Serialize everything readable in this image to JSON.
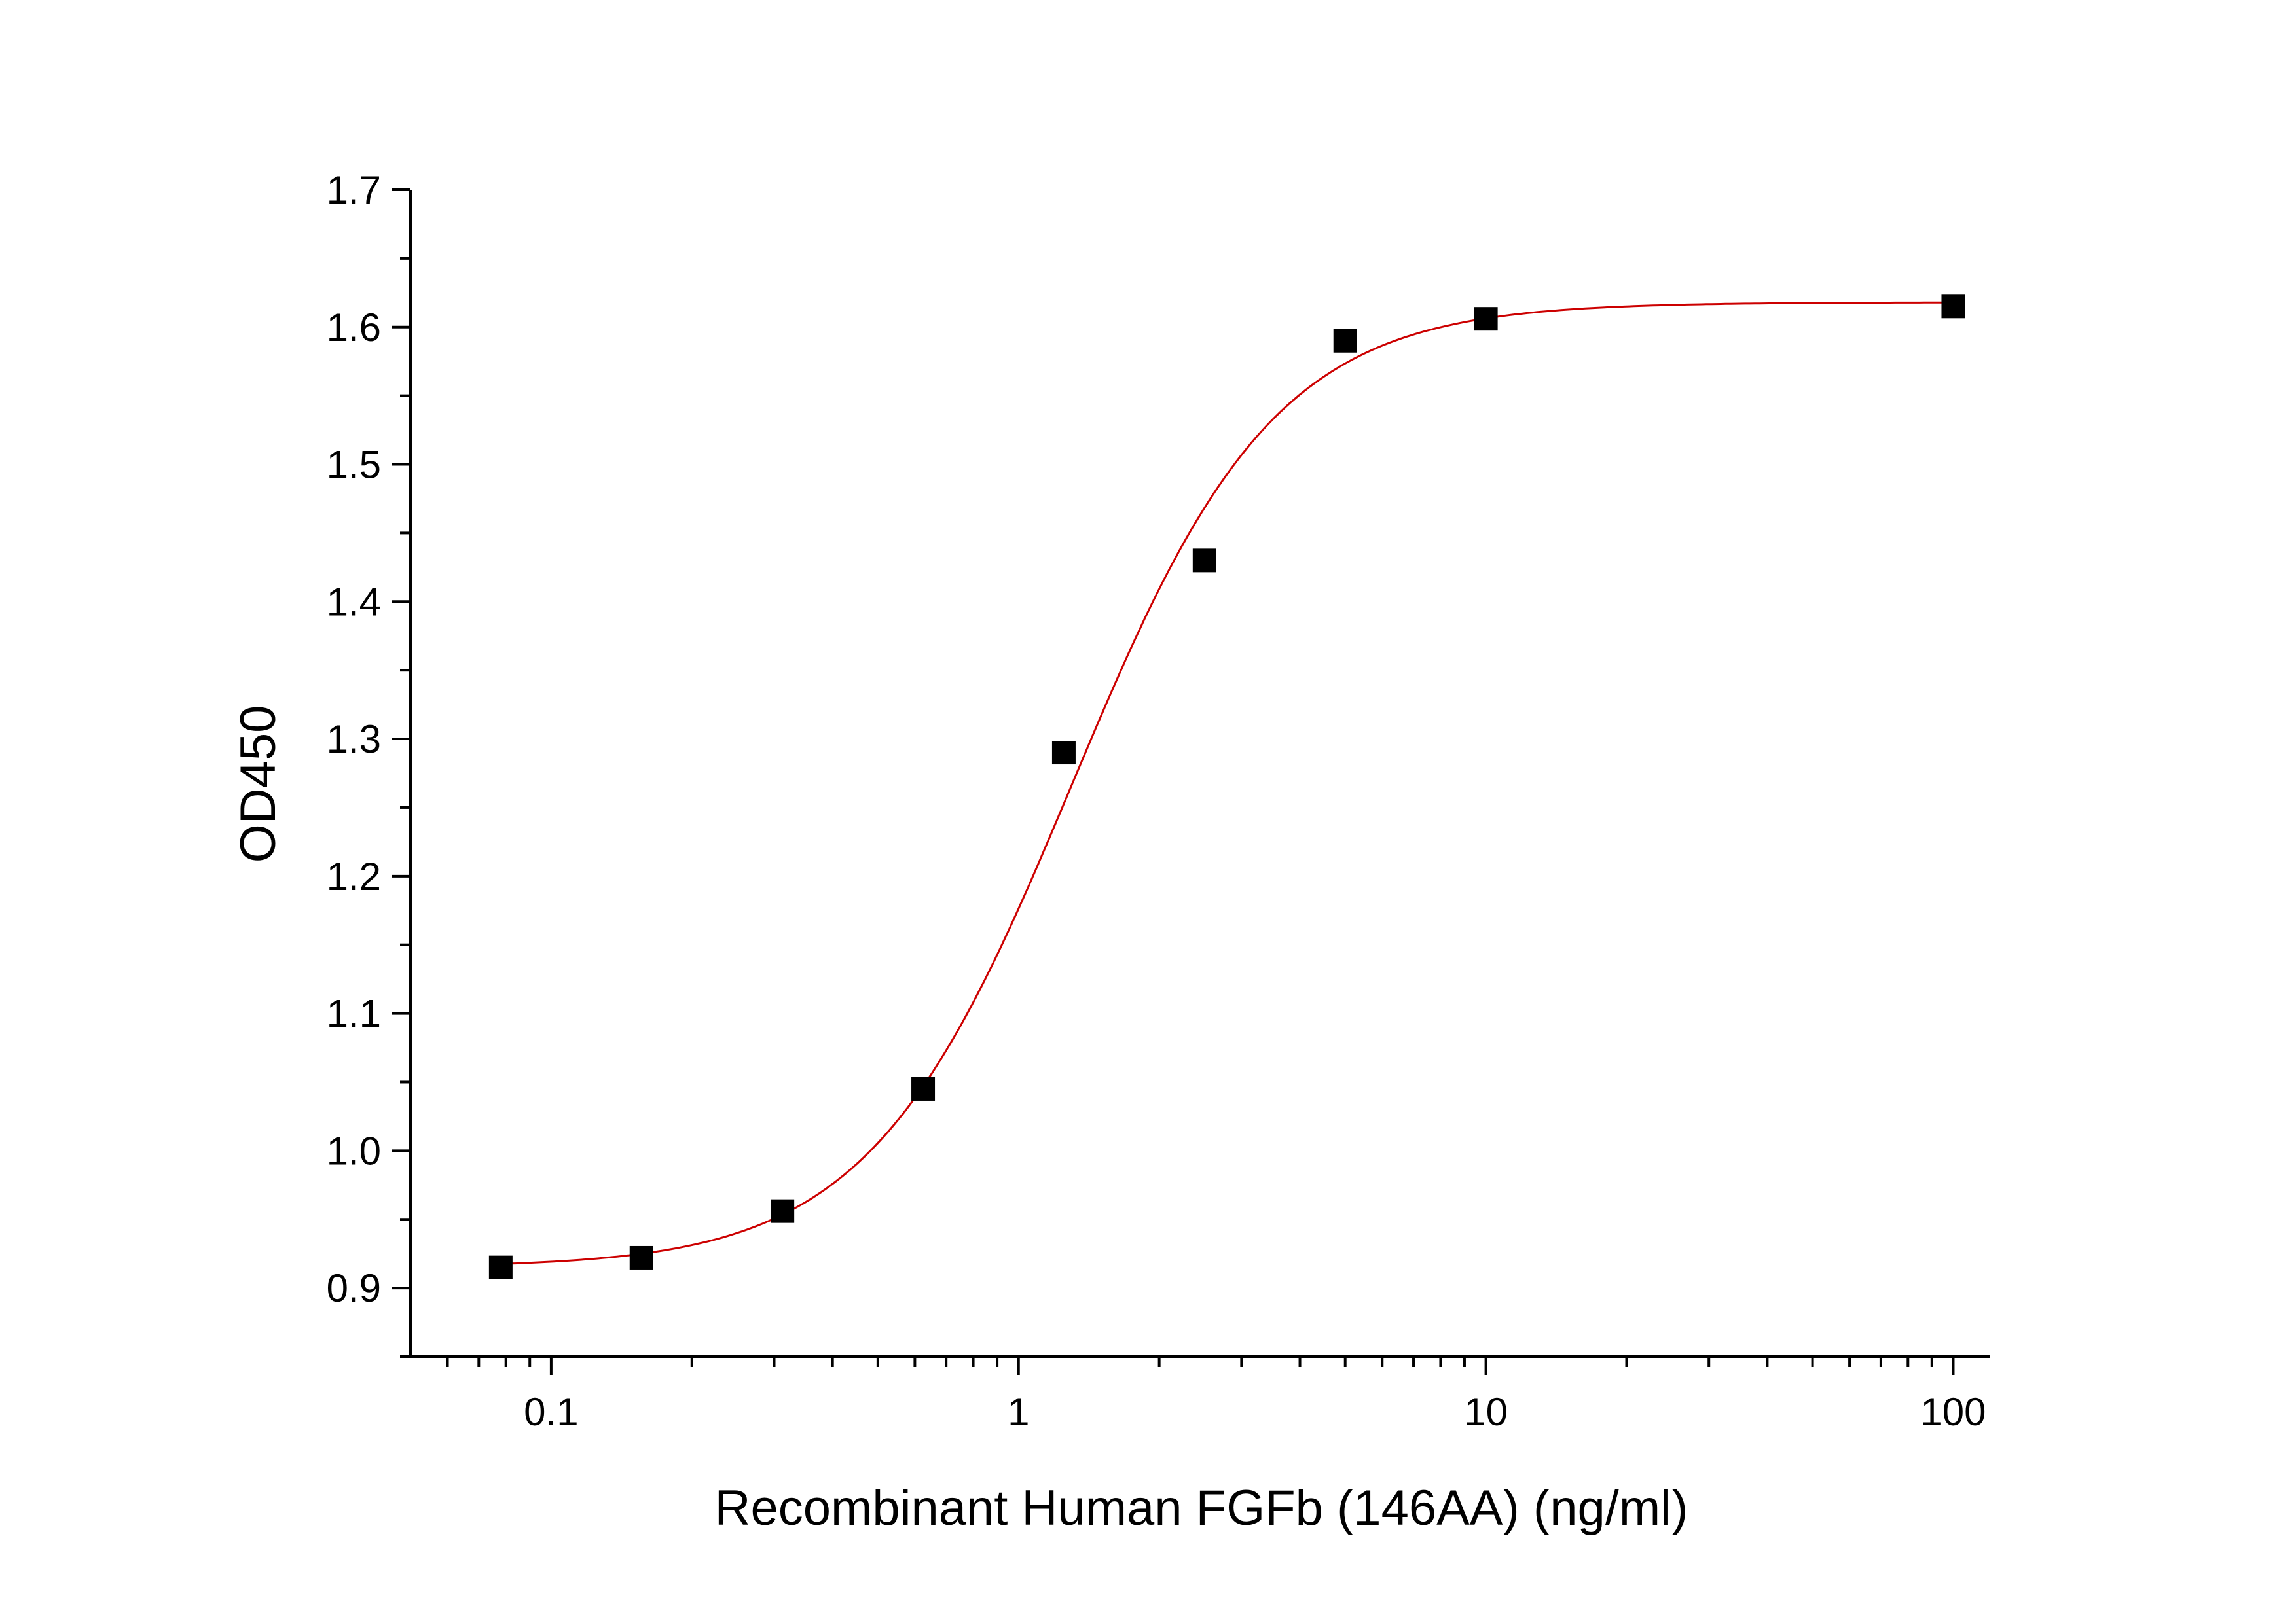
{
  "chart_data": {
    "type": "scatter",
    "xlabel": "Recombinant Human FGFb (146AA) (ng/ml)",
    "ylabel": "OD450",
    "xscale": "log",
    "xlim": [
      0.05,
      120
    ],
    "ylim": [
      0.85,
      1.7
    ],
    "xticks": [
      {
        "value": 0.1,
        "label": "0.1"
      },
      {
        "value": 1,
        "label": "1"
      },
      {
        "value": 10,
        "label": "10"
      },
      {
        "value": 100,
        "label": "100"
      }
    ],
    "yticks": [
      {
        "value": 0.9,
        "label": "0.9"
      },
      {
        "value": 1.0,
        "label": "1.0"
      },
      {
        "value": 1.1,
        "label": "1.1"
      },
      {
        "value": 1.2,
        "label": "1.2"
      },
      {
        "value": 1.3,
        "label": "1.3"
      },
      {
        "value": 1.4,
        "label": "1.4"
      },
      {
        "value": 1.5,
        "label": "1.5"
      },
      {
        "value": 1.6,
        "label": "1.6"
      },
      {
        "value": 1.7,
        "label": "1.7"
      }
    ],
    "points": [
      {
        "x": 0.078,
        "y": 0.915
      },
      {
        "x": 0.156,
        "y": 0.922
      },
      {
        "x": 0.3125,
        "y": 0.956
      },
      {
        "x": 0.625,
        "y": 1.045
      },
      {
        "x": 1.25,
        "y": 1.29
      },
      {
        "x": 2.5,
        "y": 1.43
      },
      {
        "x": 5,
        "y": 1.59
      },
      {
        "x": 10,
        "y": 1.606
      },
      {
        "x": 100,
        "y": 1.615
      }
    ],
    "fit": {
      "model": "4PL",
      "bottom": 0.915,
      "top": 1.618,
      "ec50": 1.3,
      "hill": 2.0
    },
    "marker_color": "#000000",
    "fit_color": "#cc0000",
    "grid": false,
    "legend": "none"
  }
}
